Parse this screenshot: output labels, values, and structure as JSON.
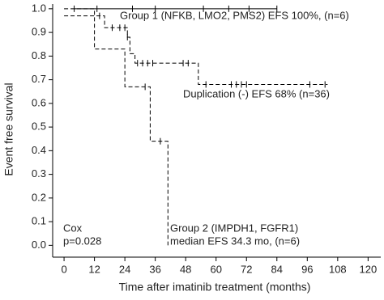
{
  "chart_data": {
    "type": "step",
    "xlabel": "Time after imatinib treatment (months)",
    "ylabel": "Event free survival",
    "xlim": [
      -4.5,
      125
    ],
    "ylim": [
      -0.05,
      1.02
    ],
    "xticks": [
      0,
      12,
      24,
      36,
      48,
      60,
      72,
      84,
      96,
      108,
      120
    ],
    "yticks": [
      {
        "value": 0,
        "label": "0.0"
      },
      0.1,
      0.2,
      0.3,
      0.4,
      0.5,
      0.6,
      0.7,
      0.8,
      0.9,
      {
        "value": 1,
        "label": "1.0"
      }
    ],
    "series": [
      {
        "name": "Group 1 (NFKB, LMO2, PMS2)  EFS 100%, (n=6)",
        "color": "#000000",
        "dashed": false,
        "x": [
          4,
          84
        ],
        "values": [
          1,
          1
        ],
        "censor_x": [
          4,
          13,
          27,
          36,
          55,
          65,
          73,
          84
        ],
        "censor_values": [
          1,
          1,
          1,
          1,
          1,
          1,
          1,
          1
        ]
      },
      {
        "name": "Duplication (-)  EFS 68% (n=36)",
        "color": "#000000",
        "dashed": true,
        "x": [
          0,
          16,
          25,
          26,
          28,
          53,
          104
        ],
        "values": [
          0.97,
          0.92,
          0.88,
          0.81,
          0.77,
          0.68,
          0.68
        ],
        "censor_x": [
          14,
          19,
          22,
          24,
          25,
          29,
          31,
          33,
          35,
          47,
          49,
          56,
          66,
          68,
          70,
          72,
          97,
          103
        ],
        "censor_values": [
          0.97,
          0.92,
          0.92,
          0.92,
          0.88,
          0.77,
          0.77,
          0.77,
          0.77,
          0.77,
          0.77,
          0.68,
          0.68,
          0.68,
          0.68,
          0.68,
          0.68,
          0.68
        ]
      },
      {
        "name": "Group 2 (IMPDH1, FGFR1)",
        "subtitle": "median EFS 34.3 mo, (n=6)",
        "color": "#000000",
        "dashed": true,
        "x": [
          0,
          12,
          24,
          34,
          41
        ],
        "values": [
          1,
          0.83,
          0.67,
          0.44,
          0
        ],
        "censor_x": [
          32,
          38
        ],
        "censor_values": [
          0.67,
          0.44
        ]
      }
    ],
    "annotations": [
      "Cox",
      "p=0.028"
    ]
  }
}
